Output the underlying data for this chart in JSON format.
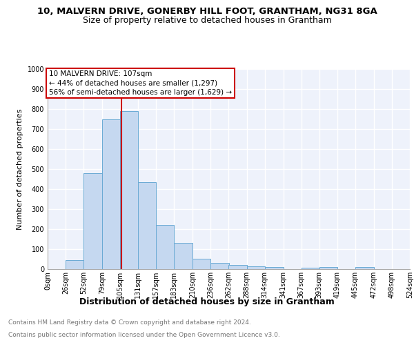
{
  "title1": "10, MALVERN DRIVE, GONERBY HILL FOOT, GRANTHAM, NG31 8GA",
  "title2": "Size of property relative to detached houses in Grantham",
  "xlabel": "Distribution of detached houses by size in Grantham",
  "ylabel": "Number of detached properties",
  "bar_edges": [
    0,
    26,
    52,
    79,
    105,
    131,
    157,
    183,
    210,
    236,
    262,
    288,
    314,
    341,
    367,
    393,
    419,
    445,
    472,
    498,
    524
  ],
  "bar_heights": [
    0,
    45,
    480,
    750,
    790,
    435,
    220,
    130,
    52,
    30,
    20,
    14,
    10,
    0,
    8,
    10,
    0,
    10,
    0,
    0
  ],
  "bar_color": "#c5d8f0",
  "bar_edge_color": "#6aaad4",
  "vline_x": 107,
  "vline_color": "#cc0000",
  "annotation_text": "10 MALVERN DRIVE: 107sqm\n← 44% of detached houses are smaller (1,297)\n56% of semi-detached houses are larger (1,629) →",
  "annotation_box_color": "#cc0000",
  "ylim": [
    0,
    1000
  ],
  "yticks": [
    0,
    100,
    200,
    300,
    400,
    500,
    600,
    700,
    800,
    900,
    1000
  ],
  "bg_color": "#eef2fb",
  "grid_color": "#ffffff",
  "tick_labels": [
    "0sqm",
    "26sqm",
    "52sqm",
    "79sqm",
    "105sqm",
    "131sqm",
    "157sqm",
    "183sqm",
    "210sqm",
    "236sqm",
    "262sqm",
    "288sqm",
    "314sqm",
    "341sqm",
    "367sqm",
    "393sqm",
    "419sqm",
    "445sqm",
    "472sqm",
    "498sqm",
    "524sqm"
  ],
  "footer_text1": "Contains HM Land Registry data © Crown copyright and database right 2024.",
  "footer_text2": "Contains public sector information licensed under the Open Government Licence v3.0.",
  "title1_fontsize": 9.5,
  "title2_fontsize": 9,
  "xlabel_fontsize": 9,
  "ylabel_fontsize": 8,
  "tick_fontsize": 7,
  "ann_fontsize": 7.5,
  "footer_fontsize": 6.5
}
